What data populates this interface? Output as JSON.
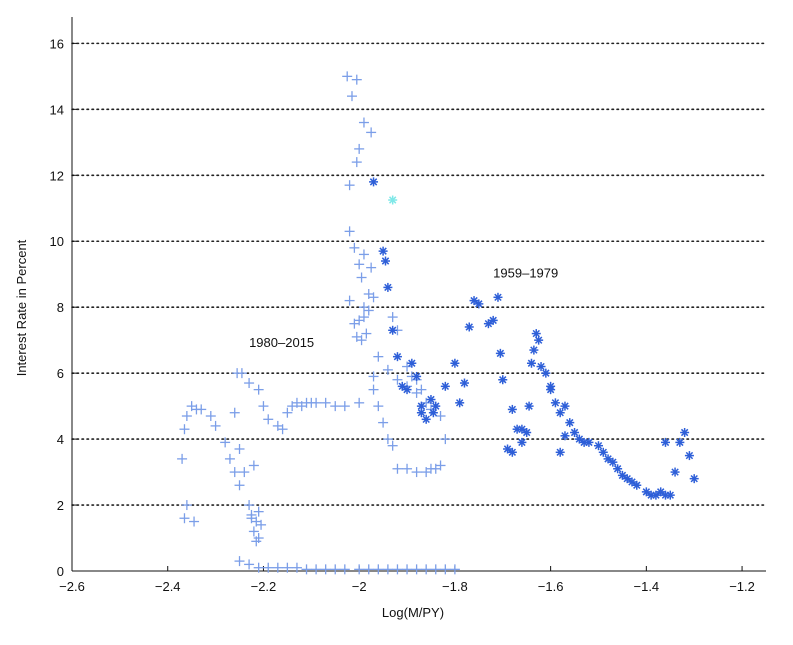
{
  "chart_data": {
    "type": "scatter",
    "title": "",
    "xlabel": "Log(M/PY)",
    "ylabel": "Interest Rate in Percent",
    "xlim": [
      -2.6,
      -1.15
    ],
    "ylim": [
      0,
      16.8
    ],
    "xticks": [
      -2.6,
      -2.4,
      -2.2,
      -2.0,
      -1.8,
      -1.6,
      -1.4,
      -1.2
    ],
    "xtick_labels": [
      "−2.6",
      "−2.4",
      "−2.2",
      "−2",
      "−1.8",
      "−1.6",
      "−1.4",
      "−1.2"
    ],
    "yticks": [
      0,
      2,
      4,
      6,
      8,
      10,
      12,
      14,
      16
    ],
    "ytick_labels": [
      "0",
      "2",
      "4",
      "6",
      "8",
      "10",
      "12",
      "14",
      "16"
    ],
    "grid": "horizontal dotted",
    "annotations": [
      {
        "text": "1980–2015",
        "x": -2.23,
        "y": 6.8
      },
      {
        "text": "1959–1979",
        "x": -1.72,
        "y": 8.9
      }
    ],
    "colors": {
      "series_1980_2015": "#7b9ee8",
      "series_1959_1979": "#2e5fd8",
      "highlight": "#7fe8e8"
    },
    "series": [
      {
        "marker": "plus",
        "points": [
          [
            -2.37,
            3.4
          ],
          [
            -2.365,
            4.3
          ],
          [
            -2.36,
            4.7
          ],
          [
            -2.35,
            5.0
          ],
          [
            -2.34,
            4.9
          ],
          [
            -2.33,
            4.9
          ],
          [
            -2.31,
            4.7
          ],
          [
            -2.3,
            4.4
          ],
          [
            -2.28,
            3.9
          ],
          [
            -2.27,
            3.4
          ],
          [
            -2.26,
            3.0
          ],
          [
            -2.25,
            2.6
          ],
          [
            -2.36,
            2.0
          ],
          [
            -2.365,
            1.6
          ],
          [
            -2.345,
            1.5
          ],
          [
            -2.26,
            4.8
          ],
          [
            -2.255,
            6.0
          ],
          [
            -2.245,
            6.0
          ],
          [
            -2.23,
            5.7
          ],
          [
            -2.21,
            5.5
          ],
          [
            -2.2,
            5.0
          ],
          [
            -2.19,
            4.6
          ],
          [
            -2.17,
            4.4
          ],
          [
            -2.16,
            4.3
          ],
          [
            -2.15,
            4.8
          ],
          [
            -2.14,
            5.0
          ],
          [
            -2.13,
            5.1
          ],
          [
            -2.12,
            5.0
          ],
          [
            -2.11,
            5.1
          ],
          [
            -2.1,
            5.1
          ],
          [
            -2.09,
            5.1
          ],
          [
            -2.07,
            5.1
          ],
          [
            -2.05,
            5.0
          ],
          [
            -2.03,
            5.0
          ],
          [
            -2.25,
            3.7
          ],
          [
            -2.24,
            3.0
          ],
          [
            -2.22,
            3.2
          ],
          [
            -2.23,
            2.0
          ],
          [
            -2.225,
            1.6
          ],
          [
            -2.22,
            1.2
          ],
          [
            -2.215,
            0.9
          ],
          [
            -2.21,
            1.0
          ],
          [
            -2.205,
            1.4
          ],
          [
            -2.21,
            1.8
          ],
          [
            -2.225,
            1.7
          ],
          [
            -2.215,
            1.5
          ],
          [
            -2.25,
            0.3
          ],
          [
            -2.23,
            0.2
          ],
          [
            -2.21,
            0.1
          ],
          [
            -2.19,
            0.1
          ],
          [
            -2.17,
            0.1
          ],
          [
            -2.15,
            0.1
          ],
          [
            -2.13,
            0.1
          ],
          [
            -2.11,
            0.05
          ],
          [
            -2.09,
            0.05
          ],
          [
            -2.07,
            0.05
          ],
          [
            -2.05,
            0.05
          ],
          [
            -2.03,
            0.05
          ],
          [
            -2.0,
            0.05
          ],
          [
            -1.98,
            0.05
          ],
          [
            -1.96,
            0.05
          ],
          [
            -1.94,
            0.05
          ],
          [
            -1.92,
            0.05
          ],
          [
            -1.9,
            0.05
          ],
          [
            -1.88,
            0.05
          ],
          [
            -1.86,
            0.05
          ],
          [
            -1.84,
            0.05
          ],
          [
            -1.82,
            0.05
          ],
          [
            -1.8,
            0.05
          ],
          [
            -2.025,
            15.0
          ],
          [
            -2.005,
            14.9
          ],
          [
            -2.015,
            14.4
          ],
          [
            -1.99,
            13.6
          ],
          [
            -1.975,
            13.3
          ],
          [
            -2.0,
            12.8
          ],
          [
            -2.005,
            12.4
          ],
          [
            -2.02,
            11.7
          ],
          [
            -2.02,
            10.3
          ],
          [
            -2.01,
            9.8
          ],
          [
            -1.99,
            9.6
          ],
          [
            -2.0,
            9.3
          ],
          [
            -1.975,
            9.2
          ],
          [
            -1.995,
            8.9
          ],
          [
            -1.98,
            8.4
          ],
          [
            -1.97,
            8.3
          ],
          [
            -1.98,
            7.9
          ],
          [
            -1.99,
            7.7
          ],
          [
            -2.0,
            7.6
          ],
          [
            -2.01,
            7.5
          ],
          [
            -2.005,
            7.1
          ],
          [
            -1.995,
            7.0
          ],
          [
            -1.985,
            7.2
          ],
          [
            -2.02,
            8.2
          ],
          [
            -1.99,
            8.0
          ],
          [
            -1.96,
            6.5
          ],
          [
            -1.94,
            6.1
          ],
          [
            -1.92,
            5.8
          ],
          [
            -1.9,
            5.6
          ],
          [
            -1.88,
            5.4
          ],
          [
            -1.86,
            5.1
          ],
          [
            -1.85,
            4.9
          ],
          [
            -1.83,
            4.7
          ],
          [
            -1.97,
            5.5
          ],
          [
            -1.96,
            5.0
          ],
          [
            -1.95,
            4.5
          ],
          [
            -1.94,
            4.0
          ],
          [
            -1.93,
            3.8
          ],
          [
            -1.92,
            3.1
          ],
          [
            -1.9,
            3.1
          ],
          [
            -1.88,
            3.0
          ],
          [
            -1.86,
            3.0
          ],
          [
            -1.85,
            3.1
          ],
          [
            -1.84,
            3.1
          ],
          [
            -1.83,
            3.2
          ],
          [
            -1.82,
            4.0
          ],
          [
            -1.97,
            5.9
          ],
          [
            -1.93,
            7.7
          ],
          [
            -1.92,
            7.3
          ],
          [
            -1.9,
            6.2
          ],
          [
            -1.89,
            5.9
          ],
          [
            -1.87,
            5.5
          ],
          [
            -1.88,
            5.8
          ],
          [
            -2.0,
            5.1
          ]
        ]
      },
      {
        "marker": "star",
        "points": [
          [
            -1.97,
            11.8
          ],
          [
            -1.95,
            9.7
          ],
          [
            -1.945,
            9.4
          ],
          [
            -1.94,
            8.6
          ],
          [
            -1.93,
            7.3
          ],
          [
            -1.92,
            6.5
          ],
          [
            -1.91,
            5.6
          ],
          [
            -1.89,
            6.3
          ],
          [
            -1.88,
            5.9
          ],
          [
            -1.87,
            4.8
          ],
          [
            -1.86,
            4.6
          ],
          [
            -1.85,
            5.2
          ],
          [
            -1.84,
            5.0
          ],
          [
            -1.82,
            5.6
          ],
          [
            -1.8,
            6.3
          ],
          [
            -1.79,
            5.1
          ],
          [
            -1.78,
            5.7
          ],
          [
            -1.77,
            7.4
          ],
          [
            -1.76,
            8.2
          ],
          [
            -1.75,
            8.1
          ],
          [
            -1.73,
            7.5
          ],
          [
            -1.72,
            7.6
          ],
          [
            -1.71,
            8.3
          ],
          [
            -1.705,
            6.6
          ],
          [
            -1.7,
            5.8
          ],
          [
            -1.68,
            4.9
          ],
          [
            -1.67,
            4.3
          ],
          [
            -1.66,
            3.9
          ],
          [
            -1.65,
            4.2
          ],
          [
            -1.645,
            5.0
          ],
          [
            -1.64,
            6.3
          ],
          [
            -1.635,
            6.7
          ],
          [
            -1.63,
            7.2
          ],
          [
            -1.625,
            7.0
          ],
          [
            -1.62,
            6.2
          ],
          [
            -1.61,
            6.0
          ],
          [
            -1.6,
            5.5
          ],
          [
            -1.59,
            5.1
          ],
          [
            -1.58,
            4.8
          ],
          [
            -1.57,
            5.0
          ],
          [
            -1.56,
            4.5
          ],
          [
            -1.55,
            4.2
          ],
          [
            -1.54,
            4.0
          ],
          [
            -1.53,
            3.9
          ],
          [
            -1.52,
            3.9
          ],
          [
            -1.5,
            3.8
          ],
          [
            -1.49,
            3.6
          ],
          [
            -1.48,
            3.4
          ],
          [
            -1.47,
            3.3
          ],
          [
            -1.46,
            3.1
          ],
          [
            -1.45,
            2.9
          ],
          [
            -1.44,
            2.8
          ],
          [
            -1.43,
            2.7
          ],
          [
            -1.42,
            2.6
          ],
          [
            -1.4,
            2.4
          ],
          [
            -1.39,
            2.3
          ],
          [
            -1.38,
            2.3
          ],
          [
            -1.37,
            2.4
          ],
          [
            -1.36,
            2.3
          ],
          [
            -1.35,
            2.3
          ],
          [
            -1.34,
            3.0
          ],
          [
            -1.33,
            3.9
          ],
          [
            -1.32,
            4.2
          ],
          [
            -1.31,
            3.5
          ],
          [
            -1.3,
            2.8
          ],
          [
            -1.36,
            3.9
          ],
          [
            -1.69,
            3.7
          ],
          [
            -1.68,
            3.6
          ],
          [
            -1.66,
            4.3
          ],
          [
            -1.6,
            5.6
          ],
          [
            -1.58,
            3.6
          ],
          [
            -1.57,
            4.1
          ],
          [
            -1.9,
            5.5
          ],
          [
            -1.87,
            5.0
          ],
          [
            -1.845,
            4.8
          ]
        ]
      },
      {
        "marker": "star",
        "points": [
          [
            -1.93,
            11.25
          ]
        ]
      }
    ]
  }
}
